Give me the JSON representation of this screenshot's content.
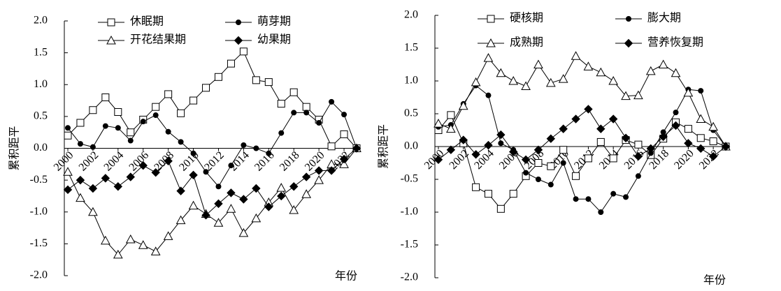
{
  "chart_data": [
    {
      "type": "line",
      "y_label": "累积距平",
      "x_label": "年份",
      "x": [
        2000,
        2001,
        2002,
        2003,
        2004,
        2005,
        2006,
        2007,
        2008,
        2009,
        2010,
        2011,
        2012,
        2013,
        2014,
        2015,
        2016,
        2017,
        2018,
        2019,
        2020,
        2021,
        2022,
        2023
      ],
      "xlim": [
        2000,
        2023
      ],
      "xticks": [
        2000,
        2002,
        2004,
        2006,
        2008,
        2010,
        2012,
        2014,
        2016,
        2018,
        2020,
        2022
      ],
      "ylim": [
        -2,
        2
      ],
      "yticks": [
        {
          "value": -2,
          "label": "-2.0"
        },
        {
          "value": -1.5,
          "label": "-1.5"
        },
        {
          "value": -1,
          "label": "-1.0"
        },
        {
          "value": -0.5,
          "label": "-0.5"
        },
        {
          "value": 0,
          "label": "0.0"
        },
        {
          "value": 0.5,
          "label": "0.5"
        },
        {
          "value": 1,
          "label": "1.0"
        },
        {
          "value": 1.5,
          "label": "1.5"
        },
        {
          "value": 2,
          "label": "2.0"
        }
      ],
      "series": [
        {
          "name": "休眠期",
          "marker": "square",
          "color": "#000000",
          "values": [
            0.2,
            0.4,
            0.6,
            0.8,
            0.57,
            0.25,
            0.45,
            0.65,
            0.85,
            0.55,
            0.75,
            0.95,
            1.12,
            1.33,
            1.52,
            1.07,
            1.04,
            0.7,
            0.88,
            0.65,
            0.45,
            0.03,
            0.22,
            0
          ]
        },
        {
          "name": "萌芽期",
          "marker": "circle",
          "color": "#000000",
          "values": [
            0.32,
            0.07,
            0.02,
            0.35,
            0.32,
            0.12,
            0.42,
            0.52,
            0.26,
            0.1,
            -0.08,
            -0.37,
            -0.6,
            -0.27,
            0.05,
            0,
            -0.08,
            0.24,
            0.56,
            0.56,
            0.4,
            0.73,
            0.53,
            0
          ]
        },
        {
          "name": "开花结果期",
          "marker": "triangle",
          "color": "#000000",
          "values": [
            -0.37,
            -0.78,
            -1,
            -1.45,
            -1.67,
            -1.43,
            -1.52,
            -1.62,
            -1.38,
            -1.13,
            -0.9,
            -1.03,
            -1.17,
            -0.95,
            -1.33,
            -1.1,
            -0.85,
            -0.62,
            -0.97,
            -0.72,
            -0.5,
            -0.25,
            -0.25,
            0
          ]
        },
        {
          "name": "幼果期",
          "marker": "diamond",
          "color": "#000000",
          "values": [
            -0.65,
            -0.5,
            -0.63,
            -0.47,
            -0.6,
            -0.45,
            -0.27,
            -0.38,
            -0.2,
            -0.67,
            -0.42,
            -1.05,
            -0.87,
            -0.7,
            -0.8,
            -0.63,
            -0.92,
            -0.75,
            -0.6,
            -0.45,
            -0.35,
            -0.35,
            -0.17,
            0
          ]
        }
      ]
    },
    {
      "type": "line",
      "y_label": "累积距平",
      "x_label": "年份",
      "x": [
        2000,
        2001,
        2002,
        2003,
        2004,
        2005,
        2006,
        2007,
        2008,
        2009,
        2010,
        2011,
        2012,
        2013,
        2014,
        2015,
        2016,
        2017,
        2018,
        2019,
        2020,
        2021,
        2022,
        2023
      ],
      "xlim": [
        2000,
        2023
      ],
      "xticks": [
        2000,
        2002,
        2004,
        2006,
        2008,
        2010,
        2012,
        2014,
        2016,
        2018,
        2020,
        2022
      ],
      "ylim": [
        -2,
        2
      ],
      "yticks": [
        {
          "value": -2,
          "label": "-2.0"
        },
        {
          "value": -1.5,
          "label": "-1.5"
        },
        {
          "value": -1,
          "label": "-1.0"
        },
        {
          "value": -0.5,
          "label": "-0.5"
        },
        {
          "value": 0,
          "label": "0.0"
        },
        {
          "value": 0.5,
          "label": "0.5"
        },
        {
          "value": 1,
          "label": "1.0"
        },
        {
          "value": 1.5,
          "label": "1.5"
        },
        {
          "value": 2,
          "label": "2.0"
        }
      ],
      "series": [
        {
          "name": "硬核期",
          "marker": "square",
          "color": "#000000",
          "values": [
            0.25,
            0.48,
            0.05,
            -0.62,
            -0.72,
            -0.95,
            -0.72,
            -0.45,
            -0.25,
            -0.3,
            -0.05,
            -0.45,
            -0.18,
            0.07,
            -0.18,
            0.1,
            0.03,
            -0.13,
            0.12,
            0.37,
            0.27,
            0.13,
            0.08,
            0
          ]
        },
        {
          "name": "膨大期",
          "marker": "circle",
          "color": "#000000",
          "values": [
            0.3,
            0.33,
            0.65,
            0.93,
            0.78,
            0.05,
            -0.05,
            -0.4,
            -0.5,
            -0.58,
            -0.25,
            -0.8,
            -0.8,
            -1,
            -0.72,
            -0.77,
            -0.45,
            -0.1,
            0.22,
            0.52,
            0.87,
            0.85,
            0.25,
            0
          ]
        },
        {
          "name": "成熟期",
          "marker": "triangle",
          "color": "#000000",
          "values": [
            0.35,
            0.27,
            0.62,
            0.98,
            1.35,
            1.12,
            1,
            0.92,
            1.25,
            0.97,
            1.03,
            1.38,
            1.22,
            1.13,
            1,
            0.77,
            0.78,
            1.15,
            1.25,
            1.12,
            0.82,
            0.42,
            0.3,
            0
          ]
        },
        {
          "name": "营养恢复期",
          "marker": "diamond",
          "color": "#000000",
          "values": [
            -0.2,
            -0.05,
            0.1,
            -0.12,
            0.02,
            0.18,
            -0.08,
            -0.2,
            -0.05,
            0.12,
            0.27,
            0.42,
            0.57,
            0.27,
            0.42,
            0.13,
            -0.15,
            -0.03,
            0.15,
            0.32,
            0.05,
            -0.03,
            -0.15,
            0
          ]
        }
      ]
    }
  ]
}
